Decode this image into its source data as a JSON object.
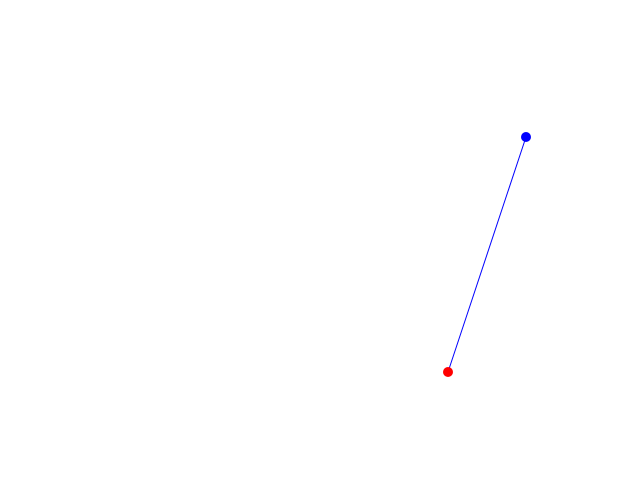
{
  "scene": {
    "background_color": "#ffffff",
    "line": {
      "color": "#0000ff"
    },
    "start_point": {
      "color": "#0000ff",
      "icon": "blue-dot"
    },
    "end_point": {
      "color": "#ff0000",
      "icon": "red-dot"
    }
  }
}
